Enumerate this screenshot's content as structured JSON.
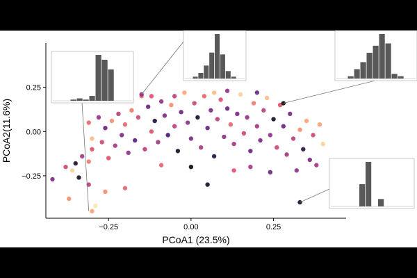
{
  "chart_data": {
    "type": "scatter",
    "xlabel": "PCoA1 (23.5%)",
    "ylabel": "PCoA2(11.6%)",
    "xlim": [
      -0.44,
      0.47
    ],
    "ylim": [
      -0.49,
      0.5
    ],
    "x_ticks": [
      -0.25,
      0.0,
      0.25
    ],
    "x_tick_labels": [
      "−0.25",
      "0.00",
      "0.25"
    ],
    "y_ticks": [
      -0.25,
      0.0,
      0.25
    ],
    "y_tick_labels": [
      "−0.25",
      "0.00",
      "0.25"
    ],
    "grid": false,
    "legend": "none",
    "colormap": [
      "#000004",
      "#3b0f70",
      "#8c2981",
      "#de4968",
      "#fe9f6d",
      "#fcfdbf"
    ],
    "points": [
      {
        "x": -0.42,
        "y": -0.27,
        "c": 0.35
      },
      {
        "x": -0.38,
        "y": -0.2,
        "c": 0.55
      },
      {
        "x": -0.36,
        "y": -0.22,
        "c": 0.9
      },
      {
        "x": -0.37,
        "y": -0.38,
        "c": 0.75
      },
      {
        "x": -0.34,
        "y": -0.26,
        "c": 0.05
      },
      {
        "x": -0.35,
        "y": -0.18,
        "c": 0.08
      },
      {
        "x": -0.3,
        "y": -0.45,
        "c": 0.8
      },
      {
        "x": -0.31,
        "y": -0.3,
        "c": 0.5
      },
      {
        "x": -0.33,
        "y": -0.14,
        "c": 0.45
      },
      {
        "x": -0.31,
        "y": -0.17,
        "c": 0.7
      },
      {
        "x": -0.3,
        "y": -0.1,
        "c": 0.6
      },
      {
        "x": -0.3,
        "y": -0.04,
        "c": 0.85
      },
      {
        "x": -0.31,
        "y": 0.05,
        "c": 0.65
      },
      {
        "x": -0.28,
        "y": 0.08,
        "c": 0.4
      },
      {
        "x": -0.27,
        "y": -0.06,
        "c": 0.55
      },
      {
        "x": -0.26,
        "y": 0.02,
        "c": 0.3
      },
      {
        "x": -0.25,
        "y": -0.15,
        "c": 0.6
      },
      {
        "x": -0.24,
        "y": 0.06,
        "c": 0.75
      },
      {
        "x": -0.23,
        "y": -0.08,
        "c": 0.45
      },
      {
        "x": -0.22,
        "y": 0.1,
        "c": 0.5
      },
      {
        "x": -0.21,
        "y": -0.02,
        "c": 0.35
      },
      {
        "x": -0.2,
        "y": 0.04,
        "c": 0.65
      },
      {
        "x": -0.19,
        "y": -0.12,
        "c": 0.4
      },
      {
        "x": -0.18,
        "y": 0.12,
        "c": 0.7
      },
      {
        "x": -0.17,
        "y": -0.05,
        "c": 0.25
      },
      {
        "x": -0.16,
        "y": 0.08,
        "c": 0.55
      },
      {
        "x": -0.15,
        "y": 0.2,
        "c": 0.7
      },
      {
        "x": -0.14,
        "y": -0.1,
        "c": 0.5
      },
      {
        "x": -0.13,
        "y": 0.14,
        "c": 0.3
      },
      {
        "x": -0.12,
        "y": 0.0,
        "c": 0.6
      },
      {
        "x": -0.11,
        "y": 0.06,
        "c": 0.1
      },
      {
        "x": -0.1,
        "y": -0.06,
        "c": 0.45
      },
      {
        "x": -0.09,
        "y": 0.17,
        "c": 0.4
      },
      {
        "x": -0.08,
        "y": 0.09,
        "c": 0.35
      },
      {
        "x": -0.07,
        "y": -0.02,
        "c": 0.2
      },
      {
        "x": -0.06,
        "y": 0.15,
        "c": 0.75
      },
      {
        "x": -0.05,
        "y": 0.03,
        "c": 0.5
      },
      {
        "x": -0.04,
        "y": -0.11,
        "c": 0.05
      },
      {
        "x": -0.03,
        "y": 0.11,
        "c": 0.3
      },
      {
        "x": -0.02,
        "y": 0.22,
        "c": 0.8
      },
      {
        "x": -0.01,
        "y": 0.05,
        "c": 0.4
      },
      {
        "x": 0.0,
        "y": -0.04,
        "c": 0.35
      },
      {
        "x": 0.01,
        "y": 0.16,
        "c": 0.55
      },
      {
        "x": 0.02,
        "y": 0.08,
        "c": 0.05
      },
      {
        "x": 0.03,
        "y": -0.09,
        "c": 0.45
      },
      {
        "x": 0.04,
        "y": 0.2,
        "c": 0.65
      },
      {
        "x": 0.05,
        "y": 0.02,
        "c": 0.3
      },
      {
        "x": 0.06,
        "y": 0.12,
        "c": 0.35
      },
      {
        "x": 0.07,
        "y": -0.14,
        "c": 0.1
      },
      {
        "x": 0.08,
        "y": 0.07,
        "c": 0.5
      },
      {
        "x": 0.09,
        "y": 0.18,
        "c": 0.6
      },
      {
        "x": 0.1,
        "y": -0.03,
        "c": 0.4
      },
      {
        "x": 0.11,
        "y": 0.13,
        "c": 0.3
      },
      {
        "x": 0.12,
        "y": 0.04,
        "c": 0.65
      },
      {
        "x": 0.13,
        "y": -0.07,
        "c": 0.45
      },
      {
        "x": 0.14,
        "y": 0.1,
        "c": 0.35
      },
      {
        "x": 0.15,
        "y": 0.21,
        "c": 0.9
      },
      {
        "x": 0.16,
        "y": -0.01,
        "c": 0.55
      },
      {
        "x": 0.17,
        "y": 0.08,
        "c": 0.4
      },
      {
        "x": 0.18,
        "y": -0.11,
        "c": 0.3
      },
      {
        "x": 0.19,
        "y": 0.16,
        "c": 0.7
      },
      {
        "x": 0.2,
        "y": 0.03,
        "c": 0.45
      },
      {
        "x": 0.21,
        "y": -0.05,
        "c": 0.35
      },
      {
        "x": 0.22,
        "y": 0.12,
        "c": 0.5
      },
      {
        "x": 0.23,
        "y": 0.19,
        "c": 0.85
      },
      {
        "x": 0.24,
        "y": -0.02,
        "c": 0.4
      },
      {
        "x": 0.25,
        "y": 0.07,
        "c": 0.05
      },
      {
        "x": 0.26,
        "y": -0.09,
        "c": 0.55
      },
      {
        "x": 0.27,
        "y": 0.15,
        "c": 0.6
      },
      {
        "x": 0.28,
        "y": 0.03,
        "c": 0.3
      },
      {
        "x": 0.29,
        "y": -0.13,
        "c": 0.45
      },
      {
        "x": 0.3,
        "y": 0.1,
        "c": 0.35
      },
      {
        "x": 0.31,
        "y": -0.04,
        "c": 0.5
      },
      {
        "x": 0.32,
        "y": -0.22,
        "c": 0.4
      },
      {
        "x": 0.33,
        "y": 0.01,
        "c": 0.75
      },
      {
        "x": 0.34,
        "y": -0.1,
        "c": 0.1
      },
      {
        "x": 0.35,
        "y": 0.06,
        "c": 0.8
      },
      {
        "x": 0.36,
        "y": -0.16,
        "c": 0.35
      },
      {
        "x": 0.37,
        "y": -0.02,
        "c": 0.55
      },
      {
        "x": 0.38,
        "y": -0.19,
        "c": 0.45
      },
      {
        "x": 0.39,
        "y": 0.04,
        "c": 0.8
      },
      {
        "x": 0.4,
        "y": -0.07,
        "c": 0.9
      },
      {
        "x": 0.33,
        "y": -0.4,
        "c": 0.05
      },
      {
        "x": 0.28,
        "y": 0.16,
        "c": 0.0
      },
      {
        "x": -0.15,
        "y": 0.21,
        "c": 0.4
      },
      {
        "x": 0.0,
        "y": -0.2,
        "c": 0.0
      },
      {
        "x": 0.05,
        "y": -0.3,
        "c": 0.05
      },
      {
        "x": -0.2,
        "y": -0.32,
        "c": 0.65
      },
      {
        "x": -0.26,
        "y": -0.34,
        "c": 0.75
      },
      {
        "x": 0.13,
        "y": -0.22,
        "c": 0.6
      },
      {
        "x": 0.18,
        "y": -0.2,
        "c": 0.45
      },
      {
        "x": -0.09,
        "y": -0.19,
        "c": 0.65
      },
      {
        "x": 0.24,
        "y": -0.23,
        "c": 0.3
      },
      {
        "x": -0.05,
        "y": 0.2,
        "c": 0.5
      },
      {
        "x": 0.07,
        "y": 0.22,
        "c": 0.85
      },
      {
        "x": -0.18,
        "y": 0.18,
        "c": 0.75
      },
      {
        "x": 0.11,
        "y": 0.23,
        "c": 0.4
      },
      {
        "x": 0.2,
        "y": 0.22,
        "c": 0.3
      },
      {
        "x": -0.12,
        "y": 0.2,
        "c": 0.6
      },
      {
        "x": -0.29,
        "y": -0.42,
        "c": 0.95
      }
    ],
    "insets": [
      {
        "name": "inset-top-left",
        "bars": [
          1,
          2,
          1,
          4,
          38,
          34,
          26
        ],
        "pointer_x": -0.31,
        "pointer_y": -0.45
      },
      {
        "name": "inset-top-center",
        "bars": [
          2,
          6,
          14,
          28,
          48,
          26,
          8,
          2
        ],
        "pointer_x": -0.15,
        "pointer_y": 0.21
      },
      {
        "name": "inset-top-right",
        "bars": [
          2,
          8,
          14,
          22,
          28,
          38,
          30,
          4,
          2
        ],
        "pointer_x": 0.28,
        "pointer_y": 0.16
      },
      {
        "name": "inset-right",
        "bars": [
          18,
          36,
          0,
          6
        ],
        "pointer_x": 0.33,
        "pointer_y": -0.4
      }
    ]
  }
}
